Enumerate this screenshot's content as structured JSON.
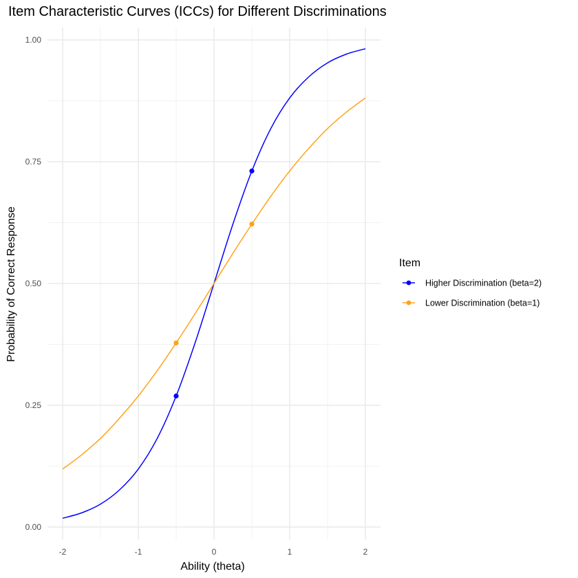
{
  "chart_data": {
    "type": "line",
    "title": "Item Characteristic Curves (ICCs) for Different Discriminations",
    "xlabel": "Ability (theta)",
    "ylabel": "Probability of Correct Response",
    "xlim": [
      -2,
      2
    ],
    "ylim": [
      0,
      1
    ],
    "x_ticks": [
      "-2",
      "-1",
      "0",
      "1",
      "2"
    ],
    "y_ticks": [
      "0.00",
      "0.25",
      "0.50",
      "0.75",
      "1.00"
    ],
    "grid": true,
    "legend": {
      "title": "Item",
      "placement": "right"
    },
    "series": [
      {
        "name": "Higher Discrimination (beta=2)",
        "color": "#0000ff",
        "x": [
          -2,
          -1.75,
          -1.5,
          -1.25,
          -1,
          -0.75,
          -0.5,
          -0.25,
          0,
          0.25,
          0.5,
          0.75,
          1,
          1.25,
          1.5,
          1.75,
          2
        ],
        "y": [
          0.018,
          0.029,
          0.047,
          0.076,
          0.119,
          0.182,
          0.269,
          0.378,
          0.5,
          0.622,
          0.731,
          0.818,
          0.881,
          0.924,
          0.953,
          0.971,
          0.982
        ],
        "points": [
          {
            "x": -0.5,
            "y": 0.269
          },
          {
            "x": 0.5,
            "y": 0.731
          }
        ]
      },
      {
        "name": "Lower Discrimination (beta=1)",
        "color": "#ffa31a",
        "x": [
          -2,
          -1.75,
          -1.5,
          -1.25,
          -1,
          -0.75,
          -0.5,
          -0.25,
          0,
          0.25,
          0.5,
          0.75,
          1,
          1.25,
          1.5,
          1.75,
          2
        ],
        "y": [
          0.119,
          0.148,
          0.182,
          0.223,
          0.269,
          0.321,
          0.378,
          0.438,
          0.5,
          0.562,
          0.622,
          0.679,
          0.731,
          0.777,
          0.818,
          0.852,
          0.881
        ],
        "points": [
          {
            "x": -0.5,
            "y": 0.378
          },
          {
            "x": 0.5,
            "y": 0.622
          }
        ]
      }
    ]
  }
}
